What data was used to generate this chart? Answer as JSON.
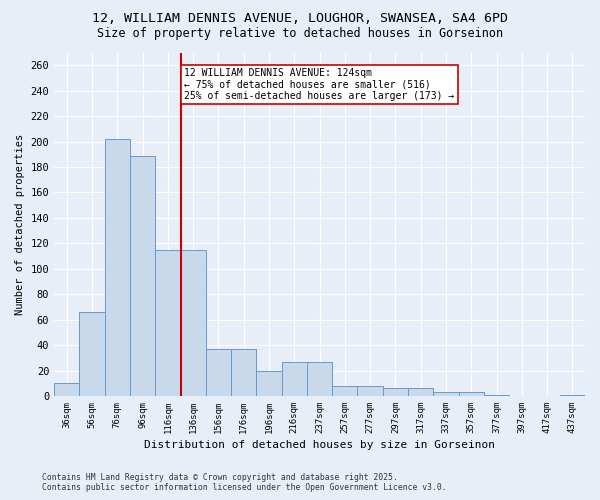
{
  "title_line1": "12, WILLIAM DENNIS AVENUE, LOUGHOR, SWANSEA, SA4 6PD",
  "title_line2": "Size of property relative to detached houses in Gorseinon",
  "xlabel": "Distribution of detached houses by size in Gorseinon",
  "ylabel": "Number of detached properties",
  "categories": [
    "36sqm",
    "56sqm",
    "76sqm",
    "96sqm",
    "116sqm",
    "136sqm",
    "156sqm",
    "176sqm",
    "196sqm",
    "216sqm",
    "237sqm",
    "257sqm",
    "277sqm",
    "297sqm",
    "317sqm",
    "337sqm",
    "357sqm",
    "377sqm",
    "397sqm",
    "417sqm",
    "437sqm"
  ],
  "values": [
    10,
    66,
    202,
    189,
    115,
    115,
    37,
    37,
    20,
    27,
    27,
    8,
    8,
    6,
    6,
    3,
    3,
    1,
    0,
    0,
    1
  ],
  "bar_color": "#c9d9ec",
  "bar_edge_color": "#6699cc",
  "background_color": "#e8eef7",
  "grid_color": "#ffffff",
  "annotation_text": "12 WILLIAM DENNIS AVENUE: 124sqm\n← 75% of detached houses are smaller (516)\n25% of semi-detached houses are larger (173) →",
  "redline_x": 4.5,
  "annotation_box_color": "#ffffff",
  "annotation_box_edge": "#cc0000",
  "redline_color": "#cc0000",
  "ylim": [
    0,
    270
  ],
  "yticks": [
    0,
    20,
    40,
    60,
    80,
    100,
    120,
    140,
    160,
    180,
    200,
    220,
    240,
    260
  ],
  "footer_line1": "Contains HM Land Registry data © Crown copyright and database right 2025.",
  "footer_line2": "Contains public sector information licensed under the Open Government Licence v3.0."
}
